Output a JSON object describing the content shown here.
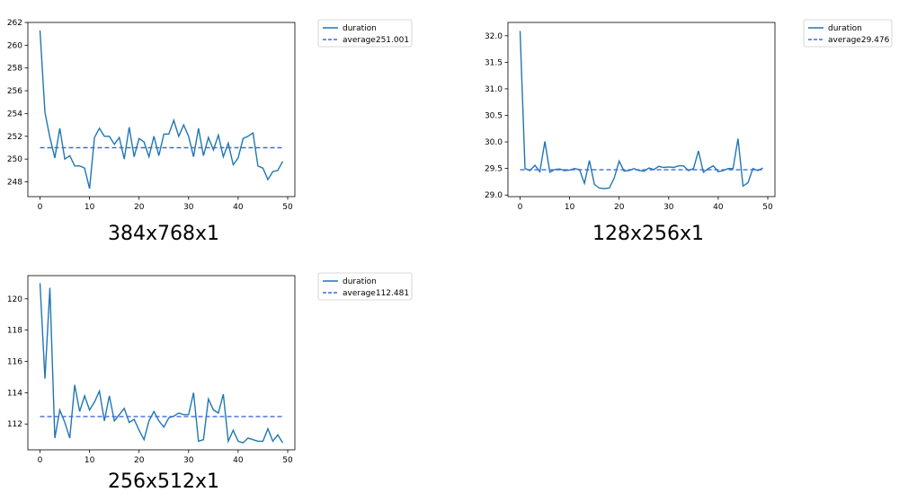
{
  "chart_data": [
    {
      "type": "line",
      "caption": "384x768x1",
      "xlim": [
        -2.45,
        51.45
      ],
      "ylim": [
        246.7,
        262.0
      ],
      "xticks": [
        0,
        10,
        20,
        30,
        40,
        50
      ],
      "yticks": [
        248,
        250,
        252,
        254,
        256,
        258,
        260,
        262
      ],
      "series": [
        {
          "name": "duration",
          "color": "#1f77b4",
          "style": "solid",
          "x": [
            0,
            1,
            2,
            3,
            4,
            5,
            6,
            7,
            8,
            9,
            10,
            11,
            12,
            13,
            14,
            15,
            16,
            17,
            18,
            19,
            20,
            21,
            22,
            23,
            24,
            25,
            26,
            27,
            28,
            29,
            30,
            31,
            32,
            33,
            34,
            35,
            36,
            37,
            38,
            39,
            40,
            41,
            42,
            43,
            44,
            45,
            46,
            47,
            48,
            49
          ],
          "y": [
            261.3,
            254.1,
            251.9,
            250.1,
            252.7,
            250.0,
            250.3,
            249.4,
            249.4,
            249.2,
            247.4,
            251.9,
            252.7,
            252.0,
            252.0,
            251.3,
            251.9,
            250.0,
            252.8,
            250.2,
            251.8,
            251.5,
            250.2,
            252.0,
            250.3,
            252.2,
            252.2,
            253.4,
            252.0,
            253.0,
            252.0,
            250.2,
            252.7,
            250.3,
            251.9,
            250.8,
            252.1,
            250.2,
            251.4,
            249.5,
            250.1,
            251.8,
            252.0,
            252.3,
            249.4,
            249.2,
            248.2,
            248.9,
            249.0,
            249.8
          ]
        },
        {
          "name": "average251.001",
          "color": "#4169e1",
          "style": "dashed",
          "x": [
            0,
            49
          ],
          "y": [
            251.001,
            251.001
          ]
        }
      ]
    },
    {
      "type": "line",
      "caption": "128x256x1",
      "xlim": [
        -2.45,
        51.45
      ],
      "ylim": [
        28.97,
        32.25
      ],
      "xticks": [
        0,
        10,
        20,
        30,
        40,
        50
      ],
      "yticks": [
        29.0,
        29.5,
        30.0,
        30.5,
        31.0,
        31.5,
        32.0
      ],
      "ytick_labels": [
        "29.0",
        "29.5",
        "30.0",
        "30.5",
        "31.0",
        "31.5",
        "32.0"
      ],
      "series": [
        {
          "name": "duration",
          "color": "#1f77b4",
          "style": "solid",
          "x": [
            0,
            1,
            2,
            3,
            4,
            5,
            6,
            7,
            8,
            9,
            10,
            11,
            12,
            13,
            14,
            15,
            16,
            17,
            18,
            19,
            20,
            21,
            22,
            23,
            24,
            25,
            26,
            27,
            28,
            29,
            30,
            31,
            32,
            33,
            34,
            35,
            36,
            37,
            38,
            39,
            40,
            41,
            42,
            43,
            44,
            45,
            46,
            47,
            48,
            49
          ],
          "y": [
            32.09,
            29.5,
            29.46,
            29.56,
            29.44,
            30.01,
            29.43,
            29.48,
            29.49,
            29.46,
            29.47,
            29.5,
            29.48,
            29.22,
            29.65,
            29.2,
            29.13,
            29.12,
            29.13,
            29.32,
            29.64,
            29.45,
            29.46,
            29.5,
            29.46,
            29.45,
            29.51,
            29.48,
            29.54,
            29.52,
            29.53,
            29.52,
            29.55,
            29.55,
            29.46,
            29.5,
            29.83,
            29.43,
            29.5,
            29.55,
            29.44,
            29.46,
            29.5,
            29.5,
            30.06,
            29.17,
            29.23,
            29.5,
            29.46,
            29.51
          ]
        },
        {
          "name": "average29.476",
          "color": "#4169e1",
          "style": "dashed",
          "x": [
            0,
            49
          ],
          "y": [
            29.476,
            29.476
          ]
        }
      ]
    },
    {
      "type": "line",
      "caption": "256x512x1",
      "xlim": [
        -2.45,
        51.45
      ],
      "ylim": [
        110.35,
        121.48
      ],
      "xticks": [
        0,
        10,
        20,
        30,
        40,
        50
      ],
      "yticks": [
        112,
        114,
        116,
        118,
        120
      ],
      "series": [
        {
          "name": "duration",
          "color": "#1f77b4",
          "style": "solid",
          "x": [
            0,
            1,
            2,
            3,
            4,
            5,
            6,
            7,
            8,
            9,
            10,
            11,
            12,
            13,
            14,
            15,
            16,
            17,
            18,
            19,
            20,
            21,
            22,
            23,
            24,
            25,
            26,
            27,
            28,
            29,
            30,
            31,
            32,
            33,
            34,
            35,
            36,
            37,
            38,
            39,
            40,
            41,
            42,
            43,
            44,
            45,
            46,
            47,
            48,
            49
          ],
          "y": [
            121.0,
            114.9,
            120.7,
            111.1,
            112.9,
            112.1,
            111.1,
            114.5,
            112.8,
            113.8,
            112.9,
            113.4,
            114.1,
            112.2,
            113.8,
            112.2,
            112.6,
            113.0,
            112.1,
            112.3,
            111.6,
            111.0,
            112.2,
            112.8,
            112.2,
            111.8,
            112.4,
            112.5,
            112.7,
            112.6,
            112.6,
            114.0,
            110.9,
            111.0,
            113.6,
            112.9,
            112.7,
            113.9,
            110.9,
            111.6,
            110.9,
            110.8,
            111.1,
            111.0,
            110.9,
            110.9,
            111.7,
            110.9,
            111.3,
            110.8
          ]
        },
        {
          "name": "average112.481",
          "color": "#4169e1",
          "style": "dashed",
          "x": [
            0,
            49
          ],
          "y": [
            112.481,
            112.481
          ]
        }
      ]
    }
  ]
}
